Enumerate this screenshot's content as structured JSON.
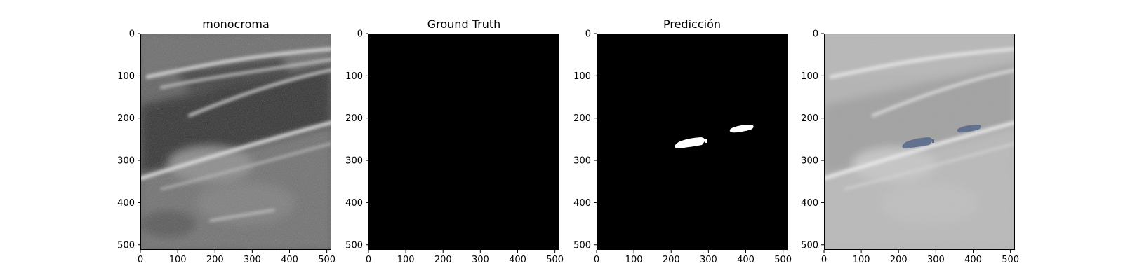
{
  "figure": {
    "panels": [
      {
        "title": "monocroma",
        "kind": "ultrasound"
      },
      {
        "title": "Ground Truth",
        "kind": "mask-empty"
      },
      {
        "title": "Predicción",
        "kind": "mask-prediction"
      },
      {
        "title": "",
        "kind": "overlay"
      }
    ],
    "x_ticks": [
      "0",
      "100",
      "200",
      "300",
      "400",
      "500"
    ],
    "y_ticks": [
      "0",
      "100",
      "200",
      "300",
      "400",
      "500"
    ],
    "colors": {
      "mask_background": "#000000",
      "mask_foreground": "#ffffff",
      "overlay_blob": "#5a6b8c"
    }
  }
}
